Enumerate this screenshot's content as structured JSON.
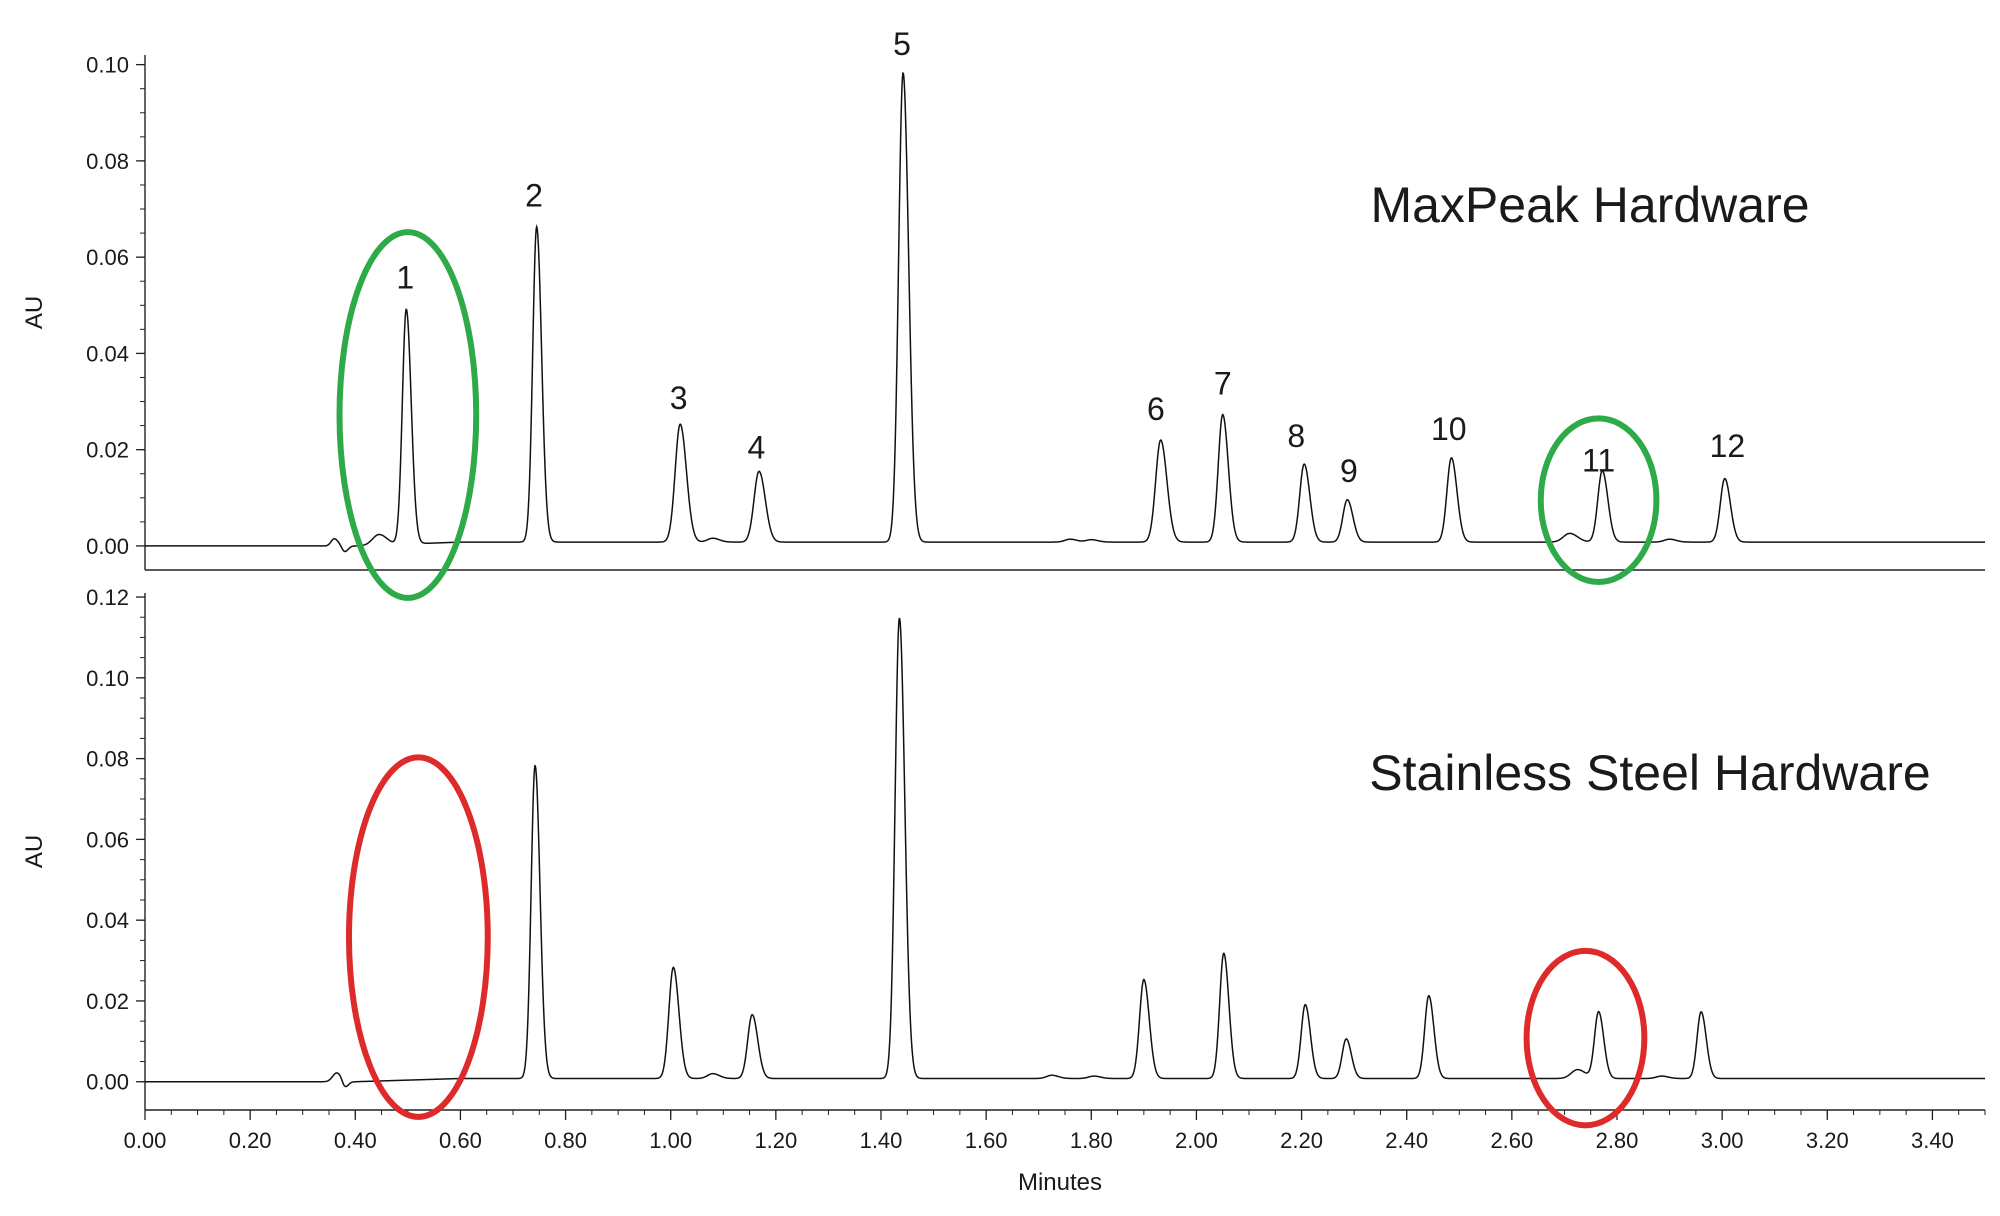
{
  "chart_data": [
    {
      "type": "line",
      "title": "MaxPeak Hardware",
      "xlabel": "",
      "ylabel": "AU",
      "xlim": [
        0.0,
        3.5
      ],
      "ylim": [
        -0.005,
        0.102
      ],
      "yticks": [
        0.0,
        0.02,
        0.04,
        0.06,
        0.08,
        0.1
      ],
      "ytick_labels": [
        "0.00",
        "0.02",
        "0.04",
        "0.06",
        "0.08",
        "0.10"
      ],
      "baseline_noise": [
        {
          "x": 0.36,
          "height": 0.0015,
          "width": 0.006
        },
        {
          "x": 0.38,
          "height": -0.0012,
          "width": 0.005
        },
        {
          "x": 0.445,
          "height": 0.0022,
          "width": 0.012
        },
        {
          "x": 1.08,
          "height": 0.0008,
          "width": 0.01
        },
        {
          "x": 1.76,
          "height": 0.0006,
          "width": 0.01
        },
        {
          "x": 1.8,
          "height": 0.0005,
          "width": 0.01
        },
        {
          "x": 2.71,
          "height": 0.0018,
          "width": 0.012
        },
        {
          "x": 2.9,
          "height": 0.0006,
          "width": 0.01
        }
      ],
      "peaks": [
        {
          "label": "1",
          "x": 0.497,
          "height": 0.0488,
          "width": 0.0075,
          "label_x": 0.495,
          "label_y": 0.0535
        },
        {
          "label": "2",
          "x": 0.745,
          "height": 0.0655,
          "width": 0.0075,
          "label_x": 0.74,
          "label_y": 0.0705
        },
        {
          "label": "3",
          "x": 1.018,
          "height": 0.0245,
          "width": 0.0095,
          "label_x": 1.015,
          "label_y": 0.0285
        },
        {
          "label": "4",
          "x": 1.168,
          "height": 0.0147,
          "width": 0.0095,
          "label_x": 1.163,
          "label_y": 0.0182
        },
        {
          "label": "5",
          "x": 1.442,
          "height": 0.0975,
          "width": 0.0085,
          "label_x": 1.44,
          "label_y": 0.102
        },
        {
          "label": "6",
          "x": 1.932,
          "height": 0.0212,
          "width": 0.0095,
          "label_x": 1.923,
          "label_y": 0.0262
        },
        {
          "label": "7",
          "x": 2.05,
          "height": 0.0265,
          "width": 0.0085,
          "label_x": 2.05,
          "label_y": 0.0315
        },
        {
          "label": "8",
          "x": 2.205,
          "height": 0.0162,
          "width": 0.0085,
          "label_x": 2.19,
          "label_y": 0.0206
        },
        {
          "label": "9",
          "x": 2.287,
          "height": 0.0088,
          "width": 0.0085,
          "label_x": 2.29,
          "label_y": 0.0133
        },
        {
          "label": "10",
          "x": 2.485,
          "height": 0.0175,
          "width": 0.0085,
          "label_x": 2.48,
          "label_y": 0.022
        },
        {
          "label": "11",
          "x": 2.772,
          "height": 0.0148,
          "width": 0.0085,
          "label_x": 2.765,
          "label_y": 0.0155
        },
        {
          "label": "12",
          "x": 3.005,
          "height": 0.0132,
          "width": 0.0085,
          "label_x": 3.01,
          "label_y": 0.0185
        }
      ],
      "annotations": [
        {
          "shape": "ellipse",
          "color": "#2eaa48",
          "cx": 0.5,
          "cy": 0.0272,
          "rx": 0.13,
          "ry": 0.038
        },
        {
          "shape": "ellipse",
          "color": "#2eaa48",
          "cx": 2.765,
          "cy": 0.0095,
          "rx": 0.11,
          "ry": 0.017
        }
      ]
    },
    {
      "type": "line",
      "title": "Stainless Steel Hardware",
      "xlabel": "Minutes",
      "ylabel": "AU",
      "xlim": [
        0.0,
        3.5
      ],
      "ylim": [
        -0.007,
        0.121
      ],
      "yticks": [
        0.0,
        0.02,
        0.04,
        0.06,
        0.08,
        0.1,
        0.12
      ],
      "ytick_labels": [
        "0.00",
        "0.02",
        "0.04",
        "0.06",
        "0.08",
        "0.10",
        "0.12"
      ],
      "xticks": [
        0.0,
        0.2,
        0.4,
        0.6,
        0.8,
        1.0,
        1.2,
        1.4,
        1.6,
        1.8,
        2.0,
        2.2,
        2.4,
        2.6,
        2.8,
        3.0,
        3.2,
        3.4
      ],
      "xtick_labels": [
        "0.00",
        "0.20",
        "0.40",
        "0.60",
        "0.80",
        "1.00",
        "1.20",
        "1.40",
        "1.60",
        "1.80",
        "2.00",
        "2.20",
        "2.40",
        "2.60",
        "2.80",
        "3.00",
        "3.20",
        "3.40"
      ],
      "baseline_noise": [
        {
          "x": 0.365,
          "height": 0.0022,
          "width": 0.008
        },
        {
          "x": 0.38,
          "height": -0.0018,
          "width": 0.005
        },
        {
          "x": 1.08,
          "height": 0.0012,
          "width": 0.01
        },
        {
          "x": 1.725,
          "height": 0.0008,
          "width": 0.01
        },
        {
          "x": 1.805,
          "height": 0.0006,
          "width": 0.01
        },
        {
          "x": 2.725,
          "height": 0.0022,
          "width": 0.012
        },
        {
          "x": 2.885,
          "height": 0.0006,
          "width": 0.01
        }
      ],
      "peaks": [
        {
          "x": 0.742,
          "height": 0.0775,
          "width": 0.0075
        },
        {
          "x": 1.005,
          "height": 0.0275,
          "width": 0.0085
        },
        {
          "x": 1.155,
          "height": 0.0158,
          "width": 0.0085
        },
        {
          "x": 1.435,
          "height": 0.114,
          "width": 0.0082
        },
        {
          "x": 1.9,
          "height": 0.0245,
          "width": 0.0082
        },
        {
          "x": 2.052,
          "height": 0.031,
          "width": 0.0078
        },
        {
          "x": 2.207,
          "height": 0.0183,
          "width": 0.0078
        },
        {
          "x": 2.285,
          "height": 0.0098,
          "width": 0.0078
        },
        {
          "x": 2.442,
          "height": 0.0205,
          "width": 0.0078
        },
        {
          "x": 2.765,
          "height": 0.0165,
          "width": 0.0078
        },
        {
          "x": 2.96,
          "height": 0.0165,
          "width": 0.0078
        }
      ],
      "annotations": [
        {
          "shape": "ellipse",
          "color": "#dd2a2a",
          "cx": 0.52,
          "cy": 0.0358,
          "rx": 0.132,
          "ry": 0.0445
        },
        {
          "shape": "ellipse",
          "color": "#dd2a2a",
          "cx": 2.74,
          "cy": 0.0108,
          "rx": 0.112,
          "ry": 0.0216
        }
      ]
    }
  ]
}
